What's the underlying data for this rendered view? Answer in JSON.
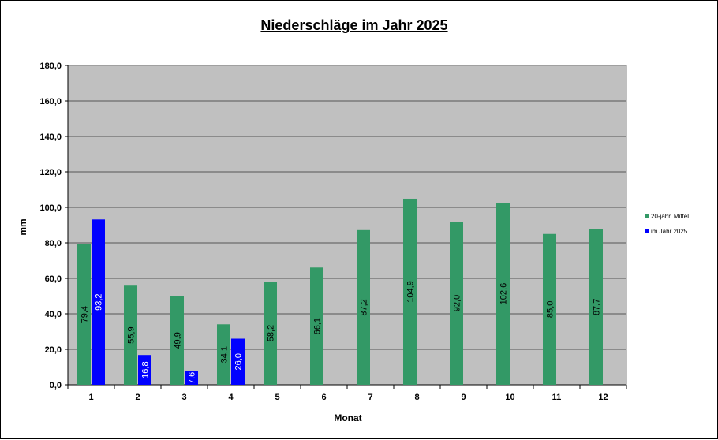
{
  "chart_data": {
    "type": "bar",
    "title": "Niederschläge im Jahr  2025",
    "xlabel": "Monat",
    "ylabel": "mm",
    "categories": [
      "1",
      "2",
      "3",
      "4",
      "5",
      "6",
      "7",
      "8",
      "9",
      "10",
      "11",
      "12"
    ],
    "ylim": [
      0,
      180
    ],
    "yticks": [
      "0,0",
      "20,0",
      "40,0",
      "60,0",
      "80,0",
      "100,0",
      "120,0",
      "140,0",
      "160,0",
      "180,0"
    ],
    "grid": true,
    "legend_position": "right",
    "series": [
      {
        "name": "20-jähr. Mittel",
        "color": "#339966",
        "values": [
          79.4,
          55.9,
          49.9,
          34.1,
          58.2,
          66.1,
          87.2,
          104.9,
          92.0,
          102.6,
          85.0,
          87.7
        ],
        "labels": [
          "79,4",
          "55,9",
          "49,9",
          "34,1",
          "58,2",
          "66,1",
          "87,2",
          "104,9",
          "92,0",
          "102,6",
          "85,0",
          "87,7"
        ]
      },
      {
        "name": "im Jahr 2025",
        "color": "#0000ff",
        "values": [
          93.2,
          16.8,
          7.6,
          26.0,
          null,
          null,
          null,
          null,
          null,
          null,
          null,
          null
        ],
        "labels": [
          "93,2",
          "16,8",
          "7,6",
          "26,0",
          "",
          "",
          "",
          "",
          "",
          "",
          "",
          ""
        ]
      }
    ],
    "plot_background": "#c0c0c0"
  }
}
